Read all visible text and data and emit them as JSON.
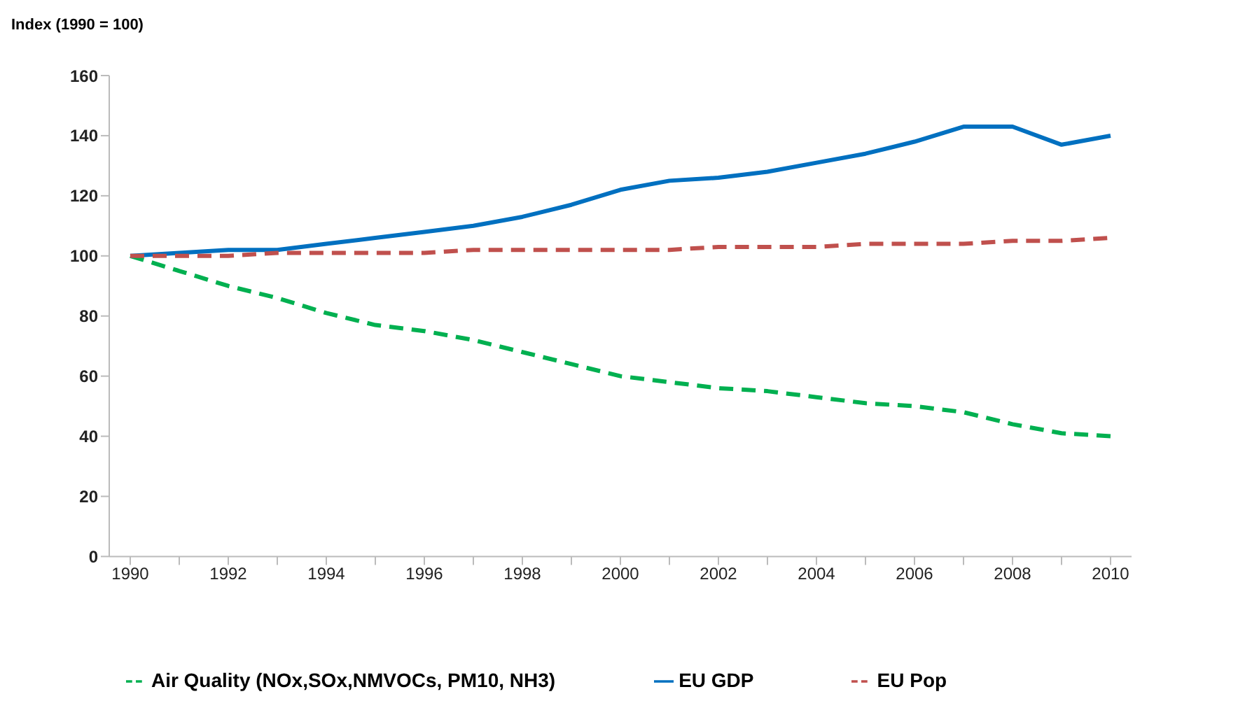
{
  "chart_data": {
    "type": "line",
    "ylabel": "Index (1990 = 100)",
    "categories": [
      "1990",
      null,
      "1992",
      null,
      "1994",
      null,
      "1996",
      null,
      "1998",
      null,
      "2000",
      null,
      "2002",
      null,
      "2004",
      null,
      "2006",
      null,
      "2008",
      null,
      "2010"
    ],
    "series": [
      {
        "name": "Air Quality (NOx,SOx,NMVOCs, PM10, NH3)",
        "color": "#00b050",
        "line_style": "dashed",
        "values": [
          100,
          95,
          90,
          86,
          81,
          77,
          75,
          72,
          68,
          64,
          60,
          58,
          56,
          55,
          53,
          51,
          50,
          48,
          44,
          41,
          40
        ]
      },
      {
        "name": "EU GDP",
        "color": "#0070c0",
        "line_style": "solid",
        "values": [
          100,
          101,
          102,
          102,
          104,
          106,
          108,
          110,
          113,
          117,
          122,
          125,
          126,
          128,
          131,
          134,
          138,
          143,
          143,
          137,
          140
        ]
      },
      {
        "name": "EU Pop",
        "color": "#c0504d",
        "line_style": "dashed",
        "values": [
          100,
          100,
          100,
          101,
          101,
          101,
          101,
          102,
          102,
          102,
          102,
          102,
          103,
          103,
          103,
          104,
          104,
          104,
          105,
          105,
          106
        ]
      }
    ],
    "ylim": [
      0,
      160
    ],
    "yticks": [
      0,
      20,
      40,
      60,
      80,
      100,
      120,
      140,
      160
    ],
    "grid": false,
    "legend": "bottom",
    "marker": "none"
  }
}
